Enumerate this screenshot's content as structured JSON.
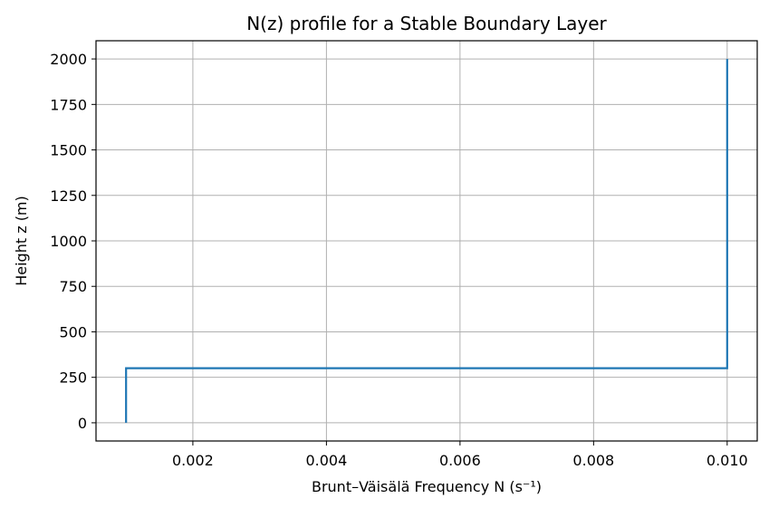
{
  "chart_data": {
    "type": "line",
    "title": "N(z) profile for a Stable Boundary Layer",
    "xlabel": "Brunt–Väisälä Frequency N (s⁻¹)",
    "ylabel": "Height z (m)",
    "xlim": [
      0.00055,
      0.01045
    ],
    "ylim": [
      -100,
      2100
    ],
    "grid": true,
    "x_ticks": [
      0.002,
      0.004,
      0.006,
      0.008,
      0.01
    ],
    "x_tick_labels": [
      "0.002",
      "0.004",
      "0.006",
      "0.008",
      "0.010"
    ],
    "y_ticks": [
      0,
      250,
      500,
      750,
      1000,
      1250,
      1500,
      1750,
      2000
    ],
    "y_tick_labels": [
      "0",
      "250",
      "500",
      "750",
      "1000",
      "1250",
      "1500",
      "1750",
      "2000"
    ],
    "series": [
      {
        "color": "#1f77b4",
        "x": [
          0.001,
          0.001,
          0.01,
          0.01
        ],
        "y": [
          0,
          300,
          300,
          2000
        ]
      }
    ]
  }
}
